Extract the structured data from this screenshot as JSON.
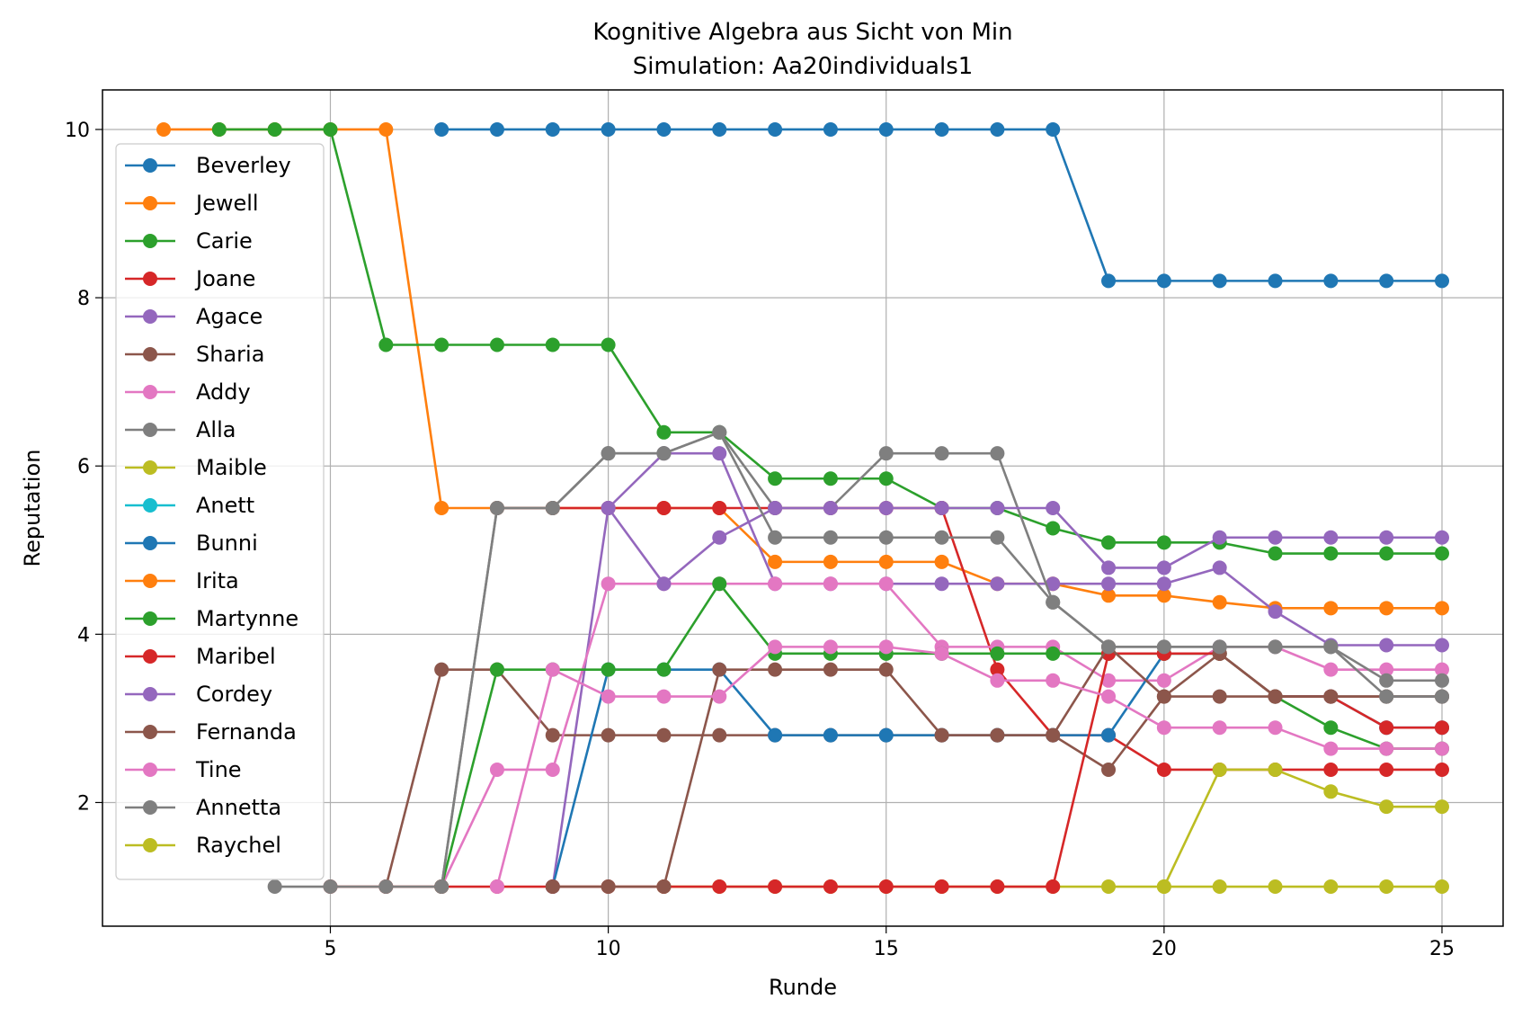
{
  "chart_data": {
    "type": "line",
    "title": "Kognitive Algebra aus Sicht von Min",
    "subtitle": "Simulation: Aa20individuals1",
    "xlabel": "Runde",
    "ylabel": "Reputation",
    "xlim": [
      0.9,
      26.1
    ],
    "ylim": [
      0.53,
      10.47
    ],
    "xticks": [
      5,
      10,
      15,
      20,
      25
    ],
    "yticks": [
      2,
      4,
      6,
      8,
      10
    ],
    "grid": true,
    "legend_position": "left",
    "series": [
      {
        "name": "Beverley",
        "color": "#1f77b4",
        "x": [
          7,
          8,
          9,
          10,
          11,
          12,
          13,
          14,
          15,
          16,
          17,
          18,
          19,
          20,
          21,
          22,
          23,
          24,
          25
        ],
        "y": [
          10,
          10,
          10,
          10,
          10,
          10,
          10,
          10,
          10,
          10,
          10,
          10,
          8.2,
          8.2,
          8.2,
          8.2,
          8.2,
          8.2,
          8.2
        ]
      },
      {
        "name": "Jewell",
        "color": "#ff7f0e",
        "x": [
          2,
          3,
          4,
          5,
          6,
          7,
          8,
          9,
          10,
          11,
          12,
          13,
          14,
          15,
          16,
          17,
          18,
          19,
          20,
          21,
          22,
          23,
          24,
          25
        ],
        "y": [
          10,
          10,
          10,
          10,
          10,
          5.5,
          5.5,
          5.5,
          5.5,
          5.5,
          5.5,
          4.86,
          4.86,
          4.86,
          4.86,
          4.6,
          4.6,
          4.46,
          4.46,
          4.38,
          4.31,
          4.31,
          4.31,
          4.31
        ]
      },
      {
        "name": "Carie",
        "color": "#2ca02c",
        "x": [
          3,
          4,
          5,
          6,
          7,
          8,
          9,
          10,
          11,
          12,
          13,
          14,
          15,
          16,
          17,
          18,
          19,
          20,
          21,
          22,
          23,
          24,
          25
        ],
        "y": [
          10,
          10,
          10,
          7.44,
          7.44,
          7.44,
          7.44,
          7.44,
          6.4,
          6.4,
          5.85,
          5.85,
          5.85,
          5.5,
          5.5,
          5.26,
          5.09,
          5.09,
          5.09,
          4.96,
          4.96,
          4.96,
          4.96
        ]
      },
      {
        "name": "Joane",
        "color": "#d62728",
        "x": [
          8,
          9,
          10,
          11,
          12,
          13,
          14,
          15,
          16,
          17,
          18,
          19,
          20,
          21,
          22,
          23,
          24,
          25
        ],
        "y": [
          5.5,
          5.5,
          5.5,
          5.5,
          5.5,
          5.5,
          5.5,
          5.5,
          5.5,
          3.58,
          2.8,
          2.8,
          2.39,
          2.39,
          2.39,
          2.39,
          2.39,
          2.39
        ]
      },
      {
        "name": "Agace",
        "color": "#9467bd",
        "x": [
          9,
          10,
          11,
          12,
          13,
          14,
          15,
          16,
          17,
          18,
          19,
          20,
          21,
          22,
          23,
          24,
          25
        ],
        "y": [
          1,
          5.5,
          6.15,
          6.15,
          4.6,
          4.6,
          4.6,
          4.6,
          4.6,
          4.6,
          4.6,
          4.6,
          4.79,
          4.27,
          3.87,
          3.87,
          3.87
        ]
      },
      {
        "name": "Sharia",
        "color": "#8c564b",
        "x": [
          6,
          7,
          8,
          9,
          10,
          11,
          12,
          13,
          14,
          15,
          16,
          17,
          18,
          19,
          20,
          21,
          22,
          23,
          24,
          25
        ],
        "y": [
          1,
          3.58,
          3.58,
          2.8,
          2.8,
          2.8,
          2.8,
          2.8,
          2.8,
          2.8,
          2.8,
          2.8,
          2.8,
          2.39,
          3.26,
          3.26,
          3.26,
          3.26,
          3.26,
          3.26
        ]
      },
      {
        "name": "Addy",
        "color": "#e377c2",
        "x": [
          7,
          8,
          9,
          10,
          11,
          12,
          13,
          14,
          15,
          16,
          17,
          18,
          19,
          20,
          21,
          22,
          23,
          24,
          25
        ],
        "y": [
          1,
          2.39,
          2.39,
          4.6,
          4.6,
          4.6,
          4.6,
          4.6,
          4.6,
          3.85,
          3.85,
          3.85,
          3.45,
          3.45,
          3.85,
          3.85,
          3.58,
          3.58,
          3.58
        ]
      },
      {
        "name": "Alla",
        "color": "#7f7f7f",
        "x": [
          7,
          8,
          9,
          10,
          11,
          12,
          13,
          14,
          15,
          16,
          17,
          18,
          19,
          20,
          21,
          22,
          23,
          24,
          25
        ],
        "y": [
          1,
          5.5,
          5.5,
          6.15,
          6.15,
          6.4,
          5.5,
          5.5,
          6.15,
          6.15,
          6.15,
          4.38,
          3.85,
          3.85,
          3.85,
          3.85,
          3.85,
          3.45,
          3.45
        ]
      },
      {
        "name": "Maible",
        "color": "#bcbd22",
        "x": [
          11,
          12,
          13,
          14,
          15,
          16,
          17,
          18,
          19,
          20,
          21,
          22,
          23,
          24,
          25
        ],
        "y": [
          1,
          1,
          1,
          1,
          1,
          1,
          1,
          1,
          1,
          1,
          1,
          1,
          1,
          1,
          1
        ]
      },
      {
        "name": "Anett",
        "color": "#17becf",
        "x": [],
        "y": []
      },
      {
        "name": "Bunni",
        "color": "#1f77b4",
        "x": [
          9,
          10,
          11,
          12,
          13,
          14,
          15,
          16,
          17,
          18,
          19,
          20,
          21,
          22,
          23,
          24,
          25
        ],
        "y": [
          1,
          3.58,
          3.58,
          3.58,
          2.8,
          2.8,
          2.8,
          2.8,
          2.8,
          2.8,
          2.8,
          3.77,
          3.77,
          3.26,
          3.26,
          2.89,
          2.89
        ]
      },
      {
        "name": "Irita",
        "color": "#ff7f0e",
        "x": [],
        "y": []
      },
      {
        "name": "Martynne",
        "color": "#2ca02c",
        "x": [
          7,
          8,
          9,
          10,
          11,
          12,
          13,
          14,
          15,
          16,
          17,
          18,
          19,
          20,
          21,
          22,
          23,
          24,
          25
        ],
        "y": [
          1,
          3.58,
          3.58,
          3.58,
          3.58,
          4.6,
          3.77,
          3.77,
          3.77,
          3.77,
          3.77,
          3.77,
          3.77,
          3.77,
          3.77,
          3.26,
          2.89,
          2.64,
          2.64
        ]
      },
      {
        "name": "Maribel",
        "color": "#d62728",
        "x": [
          5,
          6,
          7,
          8,
          9,
          10,
          11,
          12,
          13,
          14,
          15,
          16,
          17,
          18,
          19,
          20,
          21,
          22,
          23,
          24,
          25
        ],
        "y": [
          1,
          1,
          1,
          1,
          1,
          1,
          1,
          1,
          1,
          1,
          1,
          1,
          1,
          1,
          3.77,
          3.77,
          3.77,
          3.26,
          3.26,
          2.89,
          2.89
        ]
      },
      {
        "name": "Cordey",
        "color": "#9467bd",
        "x": [
          10,
          11,
          12,
          13,
          14,
          15,
          16,
          17,
          18,
          19,
          20,
          21,
          22,
          23,
          24,
          25
        ],
        "y": [
          5.5,
          4.6,
          5.15,
          5.5,
          5.5,
          5.5,
          5.5,
          5.5,
          5.5,
          4.79,
          4.79,
          5.15,
          5.15,
          5.15,
          5.15,
          5.15
        ]
      },
      {
        "name": "Fernanda",
        "color": "#8c564b",
        "x": [
          9,
          10,
          11,
          12,
          13,
          14,
          15,
          16,
          17,
          18,
          19,
          20,
          21,
          22,
          23,
          24,
          25
        ],
        "y": [
          1,
          1,
          1,
          3.58,
          3.58,
          3.58,
          3.58,
          2.8,
          2.8,
          2.8,
          3.85,
          3.26,
          3.77,
          3.26,
          3.26,
          3.26,
          3.26
        ]
      },
      {
        "name": "Tine",
        "color": "#e377c2",
        "x": [
          8,
          9,
          10,
          11,
          12,
          13,
          14,
          15,
          16,
          17,
          18,
          19,
          20,
          21,
          22,
          23,
          24,
          25
        ],
        "y": [
          1,
          3.58,
          3.26,
          3.26,
          3.26,
          3.85,
          3.85,
          3.85,
          3.77,
          3.45,
          3.45,
          3.26,
          2.89,
          2.89,
          2.89,
          2.64,
          2.64,
          2.64
        ]
      },
      {
        "name": "Annetta",
        "color": "#7f7f7f",
        "x": [
          4,
          5,
          6,
          7,
          8,
          9,
          10,
          11,
          12,
          13,
          14,
          15,
          16,
          17,
          18,
          19,
          20,
          21,
          22,
          23,
          24,
          25
        ],
        "y": [
          1,
          1,
          1,
          1,
          5.5,
          5.5,
          6.15,
          6.15,
          6.4,
          5.15,
          5.15,
          5.15,
          5.15,
          5.15,
          4.38,
          3.85,
          3.85,
          3.85,
          3.85,
          3.85,
          3.26,
          3.26
        ]
      },
      {
        "name": "Raychel",
        "color": "#bcbd22",
        "x": [
          20,
          21,
          22,
          23,
          24,
          25
        ],
        "y": [
          1,
          2.39,
          2.39,
          2.13,
          1.95,
          1.95
        ]
      }
    ]
  }
}
